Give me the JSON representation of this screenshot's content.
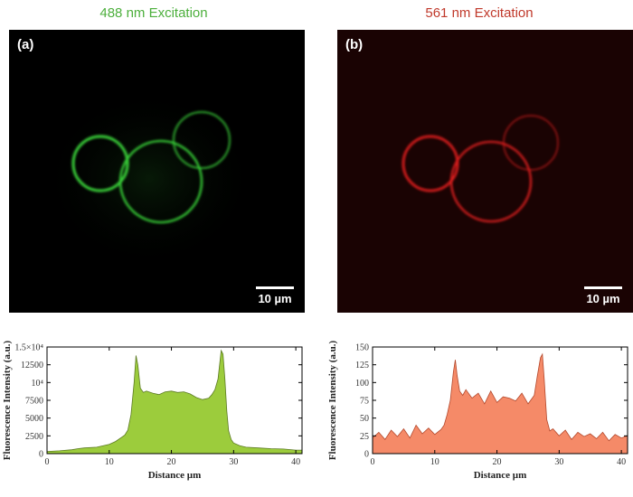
{
  "panels": [
    {
      "heading": "488 nm Excitation",
      "label": "(a)",
      "scale_bar": "10 µm",
      "color": "#39d239"
    },
    {
      "heading": "561 nm Excitation",
      "label": "(b)",
      "scale_bar": "10 µm",
      "color": "#e31c1c"
    }
  ],
  "chart_data": [
    {
      "type": "area",
      "xlabel": "Distance µm",
      "ylabel": "Fluorescence Intensity (a.u.)",
      "xlim": [
        0,
        41
      ],
      "ylim": [
        0,
        15000
      ],
      "xticks": [
        0,
        10,
        20,
        30,
        40
      ],
      "yticks": [
        0,
        2500,
        5000,
        7500,
        10000,
        12500,
        15000
      ],
      "ytick_labels": [
        "0",
        "2500",
        "5000",
        "7500",
        "10⁴",
        "12500",
        "1.5×10⁴"
      ],
      "fill_color": "#9ccc3c",
      "line_color": "#5c7a24",
      "x": [
        0,
        2,
        4,
        5,
        6,
        8,
        10,
        11,
        12,
        12.5,
        13,
        13.5,
        14,
        14.3,
        14.6,
        15,
        15.5,
        16,
        17,
        18,
        19,
        20,
        21,
        22,
        23,
        24,
        25,
        26,
        26.5,
        27,
        27.5,
        28,
        28.3,
        28.6,
        28.9,
        29.2,
        29.6,
        30,
        31,
        32,
        34,
        36,
        38,
        40,
        41
      ],
      "y": [
        300,
        400,
        550,
        700,
        800,
        900,
        1300,
        1700,
        2300,
        2600,
        3300,
        5500,
        10000,
        13800,
        12500,
        9200,
        8600,
        8800,
        8500,
        8300,
        8700,
        8800,
        8600,
        8700,
        8400,
        7900,
        7600,
        7800,
        8300,
        9000,
        10500,
        14500,
        14000,
        10500,
        6000,
        3200,
        2000,
        1500,
        1100,
        900,
        800,
        700,
        650,
        500,
        500
      ]
    },
    {
      "type": "area",
      "xlabel": "Distance µm",
      "ylabel": "Fluorescence Intensity (a.u.)",
      "xlim": [
        0,
        41
      ],
      "ylim": [
        0,
        150
      ],
      "xticks": [
        0,
        10,
        20,
        30,
        40
      ],
      "yticks": [
        0,
        25,
        50,
        75,
        100,
        125,
        150
      ],
      "ytick_labels": [
        "0",
        "25",
        "50",
        "75",
        "100",
        "125",
        "150"
      ],
      "fill_color": "#f58a68",
      "line_color": "#b3482c",
      "x": [
        0,
        1,
        2,
        3,
        4,
        5,
        6,
        7,
        8,
        9,
        10,
        11,
        11.5,
        12,
        12.5,
        13,
        13.3,
        13.6,
        14,
        14.5,
        15,
        16,
        17,
        18,
        19,
        20,
        21,
        22,
        23,
        24,
        25,
        26,
        26.5,
        27,
        27.3,
        27.6,
        28,
        28.5,
        29,
        30,
        31,
        32,
        33,
        34,
        35,
        36,
        37,
        38,
        39,
        40,
        41
      ],
      "y": [
        22,
        30,
        20,
        33,
        24,
        35,
        22,
        40,
        28,
        36,
        27,
        34,
        40,
        55,
        75,
        115,
        132,
        110,
        88,
        82,
        90,
        78,
        85,
        70,
        88,
        72,
        80,
        78,
        74,
        85,
        70,
        82,
        110,
        135,
        140,
        105,
        48,
        32,
        35,
        25,
        33,
        20,
        30,
        24,
        28,
        21,
        30,
        18,
        27,
        22,
        25
      ]
    }
  ]
}
